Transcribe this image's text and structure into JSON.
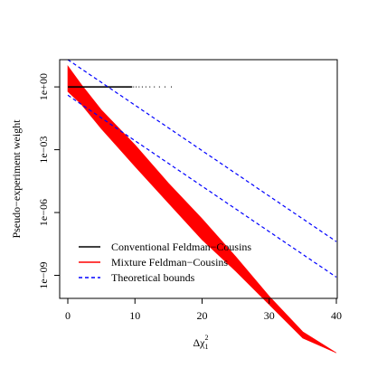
{
  "chart_data": {
    "type": "scatter",
    "xlabel": "Δχ₁²",
    "xlabel_main": "Δχ",
    "xlabel_sup": "2",
    "xlabel_sub": "1",
    "ylabel": "Pseudo−experiment weight",
    "y_scale": "log10",
    "xlim": [
      0,
      40
    ],
    "ylim_log10": [
      -10.1,
      1.3
    ],
    "x_ticks": [
      0,
      10,
      20,
      30,
      40
    ],
    "x_tick_labels": [
      "0",
      "10",
      "20",
      "30",
      "40"
    ],
    "y_ticks_log10": [
      0,
      -3,
      -6,
      -9
    ],
    "y_tick_labels": [
      "1e+00",
      "1e−03",
      "1e−06",
      "1e−09"
    ],
    "grid": false,
    "legend_position": "bottom-left",
    "series": [
      {
        "name": "Conventional Feldman−Cousins",
        "color": "#000000",
        "kind": "points",
        "y_value": 1,
        "x_range": [
          0,
          16
        ],
        "x_dense_until": 9.5
      },
      {
        "name": "Mixture Feldman−Cousins",
        "color": "#ff0000",
        "kind": "band",
        "band": [
          {
            "x": 0,
            "upper": 10,
            "lower": 0.6
          },
          {
            "x": 2,
            "upper": 1.32,
            "lower": 0.15
          },
          {
            "x": 5,
            "upper": 0.079,
            "lower": 0.01
          },
          {
            "x": 10,
            "upper": 0.0017,
            "lower": 0.00016
          },
          {
            "x": 15,
            "upper": 2.5e-05,
            "lower": 2.8e-06
          },
          {
            "x": 20,
            "upper": 5e-07,
            "lower": 5e-08
          },
          {
            "x": 25,
            "upper": 7.9e-09,
            "lower": 1.6e-09
          },
          {
            "x": 30,
            "upper": 1e-10,
            "lower": 4e-11
          },
          {
            "x": 35,
            "upper": 2e-12,
            "lower": 1e-12
          },
          {
            "x": 40,
            "upper": 2e-13,
            "lower": 2e-13
          }
        ]
      },
      {
        "name": "Theoretical bounds",
        "color": "#0000ff",
        "kind": "dashed-lines",
        "lines": [
          {
            "x": [
              0,
              40
            ],
            "y": [
              20,
              4.1e-08
            ]
          },
          {
            "x": [
              0,
              40
            ],
            "y": [
              0.4,
              8.2e-10
            ]
          }
        ]
      }
    ]
  }
}
